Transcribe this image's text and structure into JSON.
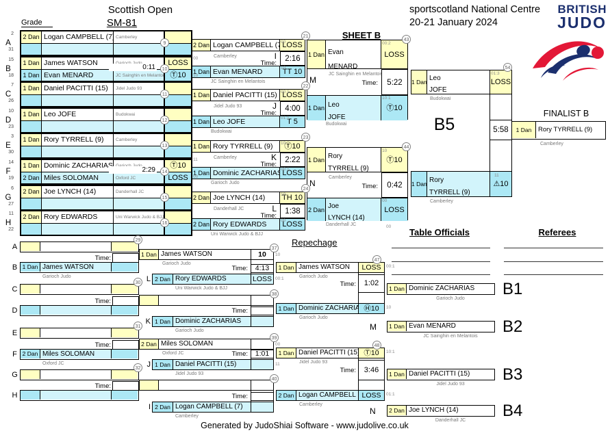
{
  "header": {
    "title": "Scottish Open",
    "category": "SM-81",
    "venue": "sportscotland National Centre",
    "dates": "20-21 January 2024",
    "grade_label": "Grade",
    "sheet_label": "SHEET B",
    "logo": {
      "line1": "BRITISH",
      "line2": "JUDO"
    }
  },
  "labels": {
    "time": "Time:",
    "finalist_title": "FINALIST B",
    "repechage_title": "Repechage",
    "table_officials": "Table Officials",
    "referees": "Referees",
    "final_code": "B5",
    "footer": "Generated by JudoShiai Software - www.judolive.co.uk"
  },
  "colors": {
    "yellow": "#ffffc2",
    "cyan_dark": "#ace8f5",
    "cyan_light": "#d2f4fb",
    "navy": "#1b2f6e",
    "red": "#e31837"
  },
  "round1": [
    {
      "letter": "A",
      "seed_top": "2",
      "seed_bottom": "31",
      "circle": "9",
      "time": "",
      "top": {
        "grade": "2 Dan",
        "name": "Logan CAMPBELL (7)",
        "club": "Camberley",
        "result": ""
      },
      "bottom": null
    },
    {
      "letter": "B",
      "seed_top": "15",
      "seed_bottom": "18",
      "circle": "10",
      "time": "0:11",
      "top": {
        "grade": "1 Dan",
        "name": "James WATSON",
        "club": "Garioch Judo",
        "result": "LOSS"
      },
      "bottom": {
        "grade": "1 Dan",
        "name": "Evan MENARD",
        "club": "JC Sainghin en Melantois",
        "result": "Ⓣ10"
      }
    },
    {
      "letter": "C",
      "seed_top": "7",
      "seed_bottom": "26",
      "circle": "11",
      "time": "",
      "top": {
        "grade": "1 Dan",
        "name": "Daniel PACITTI (15)",
        "club": "Jidel Judo 93",
        "result": ""
      },
      "bottom": null
    },
    {
      "letter": "D",
      "seed_top": "10",
      "seed_bottom": "23",
      "circle": "12",
      "time": "",
      "top": {
        "grade": "1 Dan",
        "name": "Leo JOFE",
        "club": "Budokwai",
        "result": ""
      },
      "bottom": null
    },
    {
      "letter": "E",
      "seed_top": "3",
      "seed_bottom": "30",
      "circle": "13",
      "time": "",
      "top": {
        "grade": "1 Dan",
        "name": "Rory TYRRELL (9)",
        "club": "Camberley",
        "result": ""
      },
      "bottom": null
    },
    {
      "letter": "F",
      "seed_top": "14",
      "seed_bottom": "19",
      "circle": "14",
      "time": "2:29",
      "top": {
        "grade": "1 Dan",
        "name": "Dominic ZACHARIAS",
        "club": "Garioch Judo",
        "result": "Ⓣ10"
      },
      "bottom": {
        "grade": "2 Dan",
        "name": "Miles SOLOMAN",
        "club": "Oxford JC",
        "result": "LOSS"
      }
    },
    {
      "letter": "G",
      "seed_top": "6",
      "seed_bottom": "27",
      "circle": "15",
      "time": "",
      "top": {
        "grade": "2 Dan",
        "name": "Joe LYNCH (14)",
        "club": "Danderhall JC",
        "result": ""
      },
      "bottom": null
    },
    {
      "letter": "H",
      "seed_top": "11",
      "seed_bottom": "22",
      "circle": "16",
      "time": "",
      "top": {
        "grade": "2 Dan",
        "name": "Rory EDWARDS",
        "club": "Uni Warwick Judo & BJJ",
        "result": ""
      },
      "bottom": null
    }
  ],
  "round2": [
    {
      "label": "I",
      "circle": "21",
      "time": "2:16",
      "edge_top": "00",
      "edge_bottom": "10",
      "top": {
        "grade": "2 Dan",
        "name": "Logan CAMPBELL (7)",
        "club": "Camberley",
        "result": "LOSS",
        "corner": "00"
      },
      "bottom": {
        "grade": "1 Dan",
        "name": "Evan MENARD",
        "club": "JC Sainghin en Melantois",
        "result": "TT 10",
        "corner": "10"
      }
    },
    {
      "label": "J",
      "circle": "22",
      "time": "4:00",
      "edge_top": "",
      "edge_bottom": "",
      "top": {
        "grade": "1 Dan",
        "name": "Daniel PACITTI (15)",
        "club": "Jidel Judo 93",
        "result": "LOSS",
        "corner": "00:1"
      },
      "bottom": {
        "grade": "1 Dan",
        "name": "Leo JOFE",
        "club": "Budokwai",
        "result": "T 5",
        "corner": "01:1"
      }
    },
    {
      "label": "K",
      "circle": "23",
      "time": "2:22",
      "edge_top": "11",
      "edge_bottom": "00",
      "top": {
        "grade": "1 Dan",
        "name": "Rory TYRRELL (9)",
        "club": "Camberley",
        "result": "Ⓣ10",
        "corner": "10"
      },
      "bottom": {
        "grade": "1 Dan",
        "name": "Dominic ZACHARIAS",
        "club": "Garioch Judo",
        "result": "LOSS",
        "corner": "00:1"
      }
    },
    {
      "label": "L",
      "circle": "24",
      "time": "1:38",
      "edge_top": "",
      "edge_bottom": "",
      "top": {
        "grade": "2 Dan",
        "name": "Joe LYNCH (14)",
        "club": "Danderhall JC",
        "result": "TH 10",
        "corner": "10"
      },
      "bottom": {
        "grade": "2 Dan",
        "name": "Rory EDWARDS",
        "club": "Uni Warwick Judo & BJJ",
        "result": "LOSS",
        "corner": "00"
      }
    }
  ],
  "semifinals": [
    {
      "label": "M",
      "circle": "43",
      "time": "5:22",
      "top": {
        "grade": "1 Dan",
        "first": "Evan",
        "last": "MENARD",
        "club": "JC Sainghin en Melantois",
        "result": "LOSS",
        "corner": "00:2"
      },
      "bottom": {
        "grade": "1 Dan",
        "first": "Leo",
        "last": "JOFE",
        "club": "Budokwai",
        "result": "Ⓣ10",
        "corner": "10:1"
      }
    },
    {
      "label": "N",
      "circle": "44",
      "time": "0:42",
      "top": {
        "grade": "1 Dan",
        "first": "Rory",
        "last": "TYRRELL (9)",
        "club": "Camberley",
        "result": "Ⓣ10",
        "corner": "10"
      },
      "bottom": {
        "grade": "2 Dan",
        "first": "Joe",
        "last": "LYNCH (14)",
        "club": "Danderhall JC",
        "result": "LOSS",
        "corner": "00"
      }
    }
  ],
  "final": {
    "code": "B5",
    "circle": "54",
    "time": "5:58",
    "top": {
      "grade": "1 Dan",
      "first": "Leo",
      "last": "JOFE",
      "club": "Budokwai",
      "result": "LOSS",
      "corner": "01:3"
    },
    "bottom": {
      "grade": "1 Dan",
      "first": "Rory",
      "last": "TYRRELL (9)",
      "club": "Camberley",
      "result": "⚠10",
      "corner": "11"
    }
  },
  "finalist": {
    "grade": "1 Dan",
    "name": "Rory TYRRELL (9)",
    "club": "Camberley"
  },
  "repechage": {
    "round1": [
      {
        "letter": "A",
        "row": "light",
        "player": null
      },
      {
        "letter": "B",
        "row": "cyan",
        "player": {
          "grade": "1 Dan",
          "name": "James WATSON",
          "club": "Garioch Judo"
        }
      },
      {
        "letter": "C",
        "row": "light",
        "player": null
      },
      {
        "letter": "D",
        "row": "cyan",
        "player": null
      },
      {
        "letter": "E",
        "row": "light",
        "player": null
      },
      {
        "letter": "F",
        "row": "cyan",
        "player": {
          "grade": "2 Dan",
          "name": "Miles SOLOMAN",
          "club": "Oxford JC"
        }
      },
      {
        "letter": "G",
        "row": "light",
        "player": null
      },
      {
        "letter": "H",
        "row": "cyan",
        "player": null
      }
    ],
    "pair_circles": [
      "29",
      "30",
      "31",
      "32"
    ],
    "pair_times": [
      "",
      "",
      "",
      ""
    ],
    "round2": [
      {
        "circle": "37",
        "time": "4:13",
        "top": {
          "grade": "1 Dan",
          "name": "James WATSON",
          "club": "Garioch Judo",
          "result": "10",
          "out": "10"
        },
        "bottom": {
          "label": "L",
          "grade": "2 Dan",
          "name": "Rory EDWARDS",
          "club": "Uni Warwick Judo & BJJ",
          "result": "LOSS",
          "out": "00:1"
        }
      },
      {
        "circle": "38",
        "time": "",
        "top": null,
        "bottom": {
          "label": "K",
          "grade": "1 Dan",
          "name": "Dominic ZACHARIAS",
          "club": "Garioch Judo",
          "result": "",
          "out": ""
        }
      },
      {
        "circle": "39",
        "time": "1:01",
        "top": {
          "grade": "2 Dan",
          "name": "Miles SOLOMAN",
          "club": "Oxford JC",
          "result": "",
          "out": "00"
        },
        "bottom": {
          "label": "J",
          "grade": "1 Dan",
          "name": "Daniel PACITTI (15)",
          "club": "Jidel Judo 93",
          "result": "",
          "out": "11"
        }
      },
      {
        "circle": "40",
        "time": "",
        "top": null,
        "bottom": {
          "label": "I",
          "grade": "2 Dan",
          "name": "Logan CAMPBELL (7)",
          "club": "Camberley",
          "result": "",
          "out": ""
        }
      }
    ],
    "round3": [
      {
        "circle": "47",
        "time": "1:02",
        "top": {
          "grade": "1 Dan",
          "name": "James WATSON",
          "club": "Garioch Judo",
          "result": "LOSS",
          "out": "00:1"
        },
        "bottom": {
          "grade": "1 Dan",
          "name": "Dominic ZACHARIAS",
          "club": "Garioch Judo",
          "result": "Ⓗ10",
          "out": "10"
        }
      },
      {
        "circle": "48",
        "time": "3:46",
        "top": {
          "grade": "1 Dan",
          "name": "Daniel PACITTI (15)",
          "club": "Jidel Judo 93",
          "result": "Ⓣ10",
          "out": "10:1"
        },
        "bottom": {
          "grade": "2 Dan",
          "name": "Logan CAMPBELL (7)",
          "club": "Camberley",
          "result": "LOSS",
          "out": "01:1"
        }
      }
    ],
    "results": [
      {
        "code": "B1",
        "label": "",
        "grade": "1 Dan",
        "name": "Dominic ZACHARIAS",
        "club": "Garioch Judo"
      },
      {
        "code": "B2",
        "label": "M",
        "grade": "1 Dan",
        "name": "Evan MENARD",
        "club": "JC Sainghin en Melantois"
      },
      {
        "code": "B3",
        "label": "",
        "grade": "1 Dan",
        "name": "Daniel PACITTI (15)",
        "club": "Jidel Judo 93"
      },
      {
        "code": "B4",
        "label": "N",
        "grade": "2 Dan",
        "name": "Joe LYNCH (14)",
        "club": "Danderhall JC"
      }
    ],
    "stray_score": "00"
  }
}
